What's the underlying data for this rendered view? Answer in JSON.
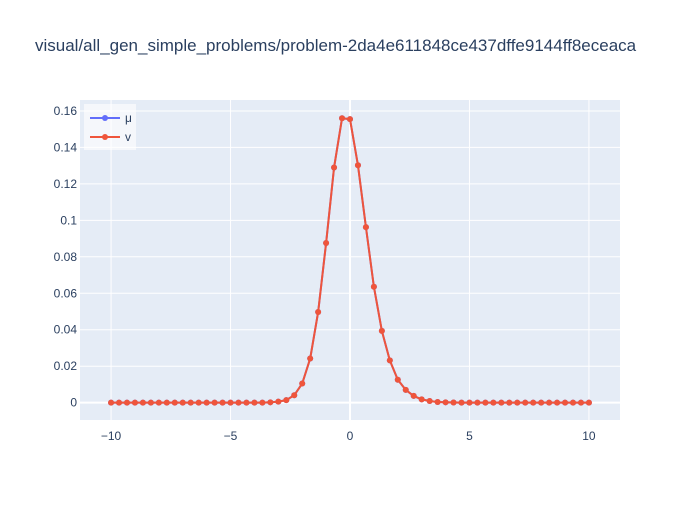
{
  "chart_data": {
    "type": "line",
    "title": "visual/all_gen_simple_problems/problem-2da4e611848ce437dffe9144ff8eceaca",
    "xlabel": "",
    "ylabel": "",
    "xlim": [
      -11.3,
      11.3
    ],
    "ylim": [
      -0.0095,
      0.166
    ],
    "x_ticks": [
      -10,
      -5,
      0,
      5,
      10
    ],
    "x_tick_labels": [
      "−10",
      "−5",
      "0",
      "5",
      "10"
    ],
    "y_ticks": [
      0,
      0.02,
      0.04,
      0.06,
      0.08,
      0.1,
      0.12,
      0.14,
      0.16
    ],
    "y_tick_labels": [
      "0",
      "0.02",
      "0.04",
      "0.06",
      "0.08",
      "0.1",
      "0.12",
      "0.14",
      "0.16"
    ],
    "grid": true,
    "legend_position": "top-left",
    "x": [
      -10,
      -9.6667,
      -9.3333,
      -9,
      -8.6667,
      -8.3333,
      -8,
      -7.6667,
      -7.3333,
      -7,
      -6.6667,
      -6.3333,
      -6,
      -5.6667,
      -5.3333,
      -5,
      -4.6667,
      -4.3333,
      -4,
      -3.6667,
      -3.3333,
      -3,
      -2.6667,
      -2.3333,
      -2,
      -1.6667,
      -1.3333,
      -1,
      -0.6667,
      -0.3333,
      0,
      0.3333,
      0.6667,
      1,
      1.3333,
      1.6667,
      2,
      2.3333,
      2.6667,
      3,
      3.3333,
      3.6667,
      4,
      4.3333,
      4.6667,
      5,
      5.3333,
      5.6667,
      6,
      6.3333,
      6.6667,
      7,
      7.3333,
      7.6667,
      8,
      8.3333,
      8.6667,
      9,
      9.3333,
      9.6667,
      10
    ],
    "series": [
      {
        "name": "μ",
        "color": "#636efa",
        "values": [
          0,
          0,
          0,
          0,
          0,
          0,
          0,
          0,
          0,
          0,
          0,
          0,
          0,
          0,
          0,
          0,
          0,
          0,
          0,
          0,
          0.0002,
          0.0006,
          0.0014,
          0.0041,
          0.0105,
          0.0242,
          0.0497,
          0.0876,
          0.129,
          0.156,
          0.1555,
          0.1302,
          0.0963,
          0.0636,
          0.0394,
          0.0232,
          0.0126,
          0.007,
          0.0037,
          0.0018,
          0.0009,
          0.0004,
          0.0002,
          0.0001,
          0,
          0,
          0,
          0,
          0,
          0,
          0,
          0,
          0,
          0,
          0,
          0,
          0,
          0,
          0,
          0,
          0
        ]
      },
      {
        "name": "v",
        "color": "#ef553b",
        "values": [
          0,
          0,
          0,
          0,
          0,
          0,
          0,
          0,
          0,
          0,
          0,
          0,
          0,
          0,
          0,
          0,
          0,
          0,
          0,
          0,
          0.0002,
          0.0006,
          0.0014,
          0.0041,
          0.0105,
          0.0242,
          0.0497,
          0.0876,
          0.129,
          0.156,
          0.1555,
          0.1302,
          0.0963,
          0.0636,
          0.0394,
          0.0232,
          0.0126,
          0.007,
          0.0037,
          0.0018,
          0.0009,
          0.0004,
          0.0002,
          0.0001,
          0,
          0,
          0,
          0,
          0,
          0,
          0,
          0,
          0,
          0,
          0,
          0,
          0,
          0,
          0,
          0,
          0
        ]
      }
    ],
    "colors": {
      "plot_background": "#e5ecf6",
      "grid": "#ffffff",
      "text": "#2a3f5f"
    }
  }
}
